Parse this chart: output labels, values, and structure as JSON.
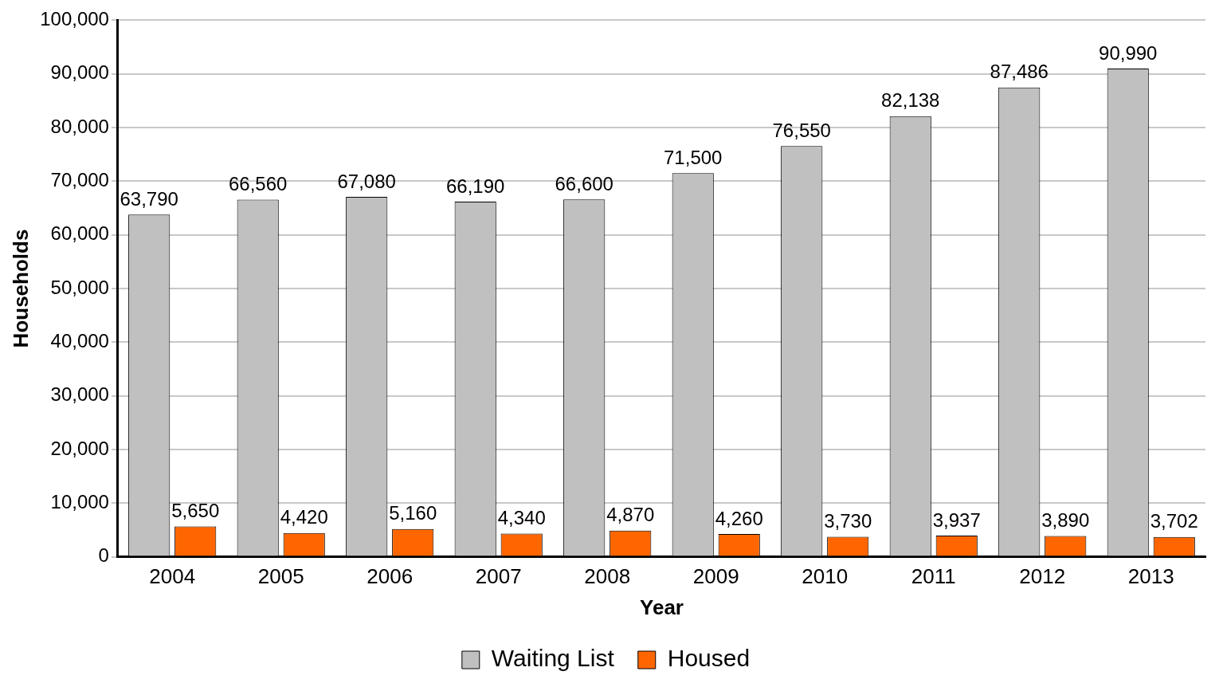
{
  "chart_data": {
    "type": "bar",
    "xlabel": "Year",
    "ylabel": "Households",
    "categories": [
      "2004",
      "2005",
      "2006",
      "2007",
      "2008",
      "2009",
      "2010",
      "2011",
      "2012",
      "2013"
    ],
    "series": [
      {
        "name": "Waiting List",
        "color": "#c0c0c0",
        "values": [
          63790,
          66560,
          67080,
          66190,
          66600,
          71500,
          76550,
          82138,
          87486,
          90990
        ],
        "value_labels": [
          "63,790",
          "66,560",
          "67,080",
          "66,190",
          "66,600",
          "71,500",
          "76,550",
          "82,138",
          "87,486",
          "90,990"
        ]
      },
      {
        "name": "Housed",
        "color": "#ff6600",
        "values": [
          5650,
          4420,
          5160,
          4340,
          4870,
          4260,
          3730,
          3937,
          3890,
          3702
        ],
        "value_labels": [
          "5,650",
          "4,420",
          "5,160",
          "4,340",
          "4,870",
          "4,260",
          "3,730",
          "3,937",
          "3,890",
          "3,702"
        ]
      }
    ],
    "ylim": [
      0,
      100000
    ],
    "yticks": [
      {
        "value": 0,
        "label": "0"
      },
      {
        "value": 10000,
        "label": "10,000"
      },
      {
        "value": 20000,
        "label": "20,000"
      },
      {
        "value": 30000,
        "label": "30,000"
      },
      {
        "value": 40000,
        "label": "40,000"
      },
      {
        "value": 50000,
        "label": "50,000"
      },
      {
        "value": 60000,
        "label": "60,000"
      },
      {
        "value": 70000,
        "label": "70,000"
      },
      {
        "value": 80000,
        "label": "80,000"
      },
      {
        "value": 90000,
        "label": "90,000"
      },
      {
        "value": 100000,
        "label": "100,000"
      }
    ],
    "grid": "y",
    "legend": "bottom"
  }
}
